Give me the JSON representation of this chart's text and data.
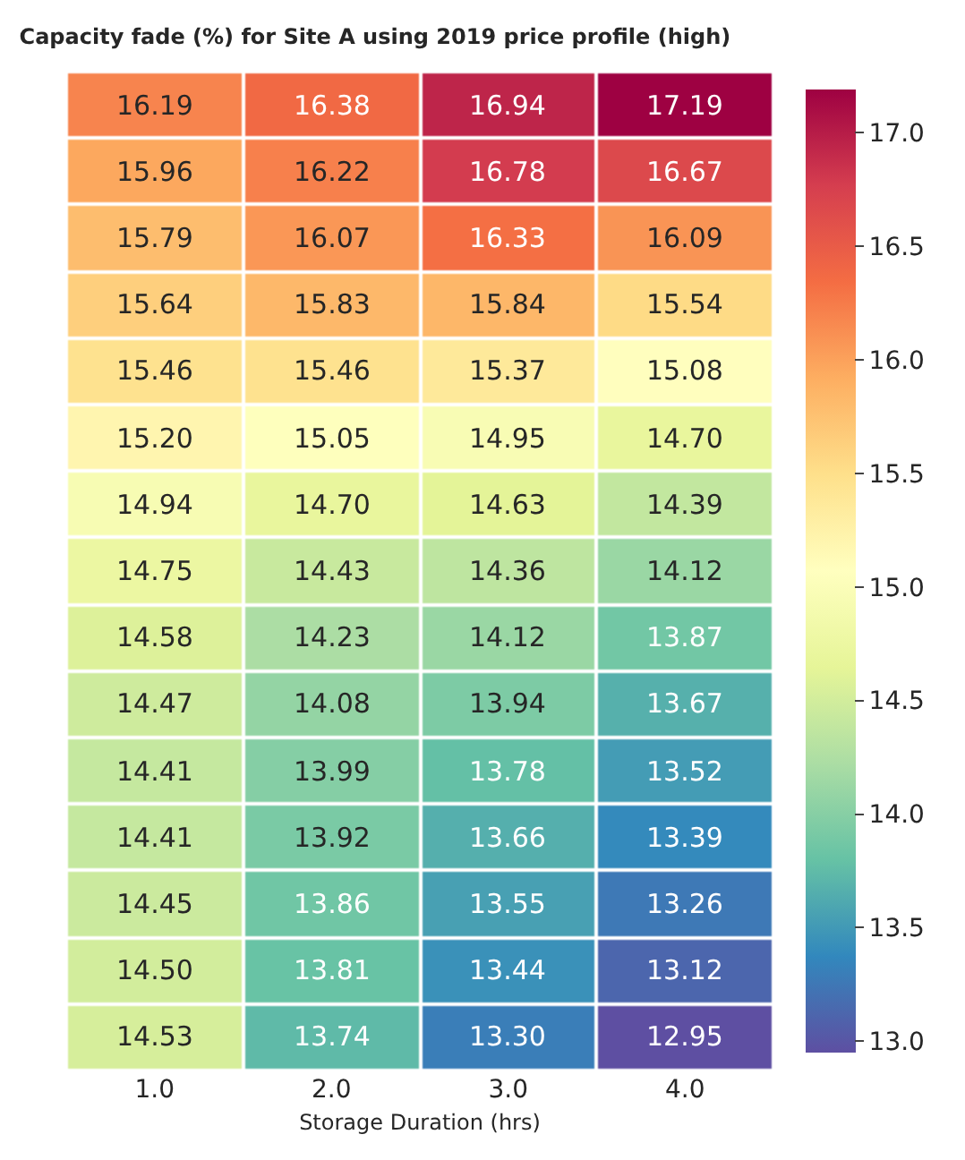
{
  "chart_data": {
    "type": "heatmap",
    "title": "Capacity fade (%) for Site A using 2019 price profile (high)",
    "xlabel": "Storage Duration (hrs)",
    "categories": [
      "1.0",
      "2.0",
      "3.0",
      "4.0"
    ],
    "y_categories": [
      null,
      null,
      null,
      null,
      null,
      null,
      null,
      null,
      null,
      null,
      null,
      null,
      null,
      null,
      null
    ],
    "cells": [
      [
        16.19,
        16.38,
        16.94,
        17.19
      ],
      [
        15.96,
        16.22,
        16.78,
        16.67
      ],
      [
        15.79,
        16.07,
        16.33,
        16.09
      ],
      [
        15.64,
        15.83,
        15.84,
        15.54
      ],
      [
        15.46,
        15.46,
        15.37,
        15.08
      ],
      [
        15.2,
        15.05,
        14.95,
        14.7
      ],
      [
        14.94,
        14.7,
        14.63,
        14.39
      ],
      [
        14.75,
        14.43,
        14.36,
        14.12
      ],
      [
        14.58,
        14.23,
        14.12,
        13.87
      ],
      [
        14.47,
        14.08,
        13.94,
        13.67
      ],
      [
        14.41,
        13.99,
        13.78,
        13.52
      ],
      [
        14.41,
        13.92,
        13.66,
        13.39
      ],
      [
        14.45,
        13.86,
        13.55,
        13.26
      ],
      [
        14.5,
        13.81,
        13.44,
        13.12
      ],
      [
        14.53,
        13.74,
        13.3,
        12.95
      ]
    ],
    "cell_labels": [
      [
        "16.19",
        "16.38",
        "16.94",
        "17.19"
      ],
      [
        "15.96",
        "16.22",
        "16.78",
        "16.67"
      ],
      [
        "15.79",
        "16.07",
        "16.33",
        "16.09"
      ],
      [
        "15.64",
        "15.83",
        "15.84",
        "15.54"
      ],
      [
        "15.46",
        "15.46",
        "15.37",
        "15.08"
      ],
      [
        "15.20",
        "15.05",
        "14.95",
        "14.70"
      ],
      [
        "14.94",
        "14.70",
        "14.63",
        "14.39"
      ],
      [
        "14.75",
        "14.43",
        "14.36",
        "14.12"
      ],
      [
        "14.58",
        "14.23",
        "14.12",
        "13.87"
      ],
      [
        "14.47",
        "14.08",
        "13.94",
        "13.67"
      ],
      [
        "14.41",
        "13.99",
        "13.78",
        "13.52"
      ],
      [
        "14.41",
        "13.92",
        "13.66",
        "13.39"
      ],
      [
        "14.45",
        "13.86",
        "13.55",
        "13.26"
      ],
      [
        "14.50",
        "13.81",
        "13.44",
        "13.12"
      ],
      [
        "14.53",
        "13.74",
        "13.30",
        "12.95"
      ]
    ],
    "clim": [
      12.95,
      17.19
    ],
    "cticks": [
      {
        "value": 13.0,
        "label": "13.0"
      },
      13.5,
      {
        "value": 14.0,
        "label": "14.0"
      },
      14.5,
      {
        "value": 15.0,
        "label": "15.0"
      },
      15.5,
      {
        "value": 16.0,
        "label": "16.0"
      },
      16.5,
      {
        "value": 17.0,
        "label": "17.0"
      }
    ],
    "tick_labels": "x"
  }
}
